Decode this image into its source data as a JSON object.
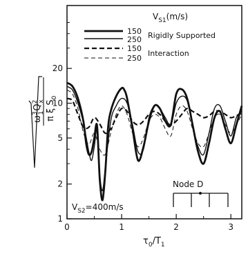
{
  "chart_data": {
    "type": "line",
    "x_axis": {
      "range": [
        0,
        3.2
      ],
      "ticks": [
        0,
        1,
        2,
        3
      ],
      "tick_labels": [
        "0",
        "1",
        "2",
        "3"
      ],
      "minor_step": 0.5,
      "label_main": "τ",
      "label_sub": "0",
      "label_sep": "/T",
      "label_sub2": "1"
    },
    "y_axis": {
      "scale": "log",
      "range": [
        1,
        70
      ],
      "ticks": [
        1,
        2,
        5,
        10,
        20
      ],
      "tick_labels": [
        "1",
        "2",
        "5",
        "10",
        "20"
      ],
      "minor_ticks": [
        3,
        4,
        6,
        7,
        8,
        9,
        30,
        40,
        50
      ],
      "label_sqrt_num": "ω",
      "label_sqrt_num_sup": "3",
      "label_sqrt_num_sub": "1",
      "label_sqrt_num_q": "Q",
      "label_sqrt_num_q_sub": "x",
      "label_sqrt_num_q_sup": "2",
      "label_sqrt_den": "π ξ S",
      "label_sqrt_den_sub": "0"
    },
    "legend": {
      "title_main": "V",
      "title_sub": "S1",
      "title_unit": "(m/s)",
      "groups": [
        {
          "label": "Rigidly Supported"
        },
        {
          "label": "Interaction"
        }
      ],
      "entries": [
        {
          "value": "150",
          "group": 0,
          "style": "solid-thick"
        },
        {
          "value": "250",
          "group": 0,
          "style": "solid-thin"
        },
        {
          "value": "150",
          "group": 1,
          "style": "dashed-thick"
        },
        {
          "value": "250",
          "group": 1,
          "style": "dashed-thin"
        }
      ]
    },
    "annotation": {
      "main": "V",
      "sub": "S2",
      "rest": "=400m/s"
    },
    "inset": {
      "label": "Node D"
    },
    "series": [
      {
        "style": "solid-thick",
        "x": [
          0,
          0.1,
          0.2,
          0.3,
          0.35,
          0.4,
          0.45,
          0.5,
          0.55,
          0.6,
          0.65,
          0.7,
          0.75,
          0.8,
          0.9,
          1.0,
          1.05,
          1.1,
          1.2,
          1.3,
          1.4,
          1.5,
          1.6,
          1.7,
          1.8,
          1.9,
          2.0,
          2.1,
          2.2,
          2.3,
          2.4,
          2.5,
          2.6,
          2.7,
          2.8,
          2.9,
          3.0,
          3.1,
          3.2
        ],
        "y": [
          15,
          14,
          11,
          7,
          4.5,
          3.6,
          3.8,
          5,
          6.4,
          2.2,
          1.45,
          2.5,
          6,
          8.5,
          11.5,
          13.5,
          13,
          11,
          6,
          3.2,
          4.2,
          7,
          9.5,
          9,
          7,
          6.5,
          12,
          13.2,
          11,
          6.5,
          3.8,
          3,
          4.5,
          7.5,
          8.5,
          6,
          4.5,
          6.5,
          9.5
        ]
      },
      {
        "style": "solid-thin",
        "x": [
          0,
          0.1,
          0.2,
          0.3,
          0.4,
          0.45,
          0.5,
          0.55,
          0.6,
          0.65,
          0.7,
          0.8,
          0.9,
          1.0,
          1.1,
          1.2,
          1.3,
          1.4,
          1.5,
          1.6,
          1.7,
          1.8,
          1.9,
          2.0,
          2.1,
          2.2,
          2.3,
          2.4,
          2.5,
          2.6,
          2.7,
          2.8,
          2.9,
          3.0,
          3.1,
          3.2
        ],
        "y": [
          14,
          13,
          10,
          6.8,
          3.8,
          3.2,
          4.2,
          5.8,
          2.4,
          1.75,
          2.7,
          7,
          9.5,
          11,
          10,
          6.5,
          3.8,
          4,
          7.5,
          9.5,
          9,
          7.5,
          6.5,
          10,
          11.5,
          10.5,
          6.5,
          4.2,
          3.6,
          5.5,
          9,
          9.5,
          7,
          5.2,
          7.5,
          8.5
        ]
      },
      {
        "style": "dashed-thick",
        "x": [
          0,
          0.1,
          0.2,
          0.3,
          0.4,
          0.5,
          0.6,
          0.7,
          0.8,
          0.9,
          1.0,
          1.1,
          1.2,
          1.3,
          1.4,
          1.5,
          1.6,
          1.7,
          1.8,
          1.9,
          2.0,
          2.1,
          2.2,
          2.3,
          2.4,
          2.5,
          2.6,
          2.7,
          2.8,
          2.9,
          3.0,
          3.1,
          3.2
        ],
        "y": [
          11,
          10.5,
          8,
          6.2,
          6.2,
          7.5,
          6.6,
          5.5,
          6,
          7.5,
          9,
          8.5,
          7,
          6.5,
          7,
          8,
          8.5,
          8,
          7,
          6.5,
          7,
          8,
          9,
          8.5,
          8,
          7.5,
          7.8,
          8.5,
          8.5,
          8,
          7.5,
          7.8,
          8.2
        ]
      },
      {
        "style": "dashed-thin",
        "x": [
          0,
          0.1,
          0.2,
          0.3,
          0.4,
          0.5,
          0.6,
          0.7,
          0.8,
          0.9,
          1.0,
          1.1,
          1.2,
          1.3,
          1.4,
          1.5,
          1.6,
          1.7,
          1.8,
          1.9,
          2.0,
          2.1,
          2.2,
          2.3,
          2.4,
          2.5,
          2.6,
          2.7,
          2.8,
          2.9,
          3.0,
          3.1,
          3.2
        ],
        "y": [
          13,
          12,
          9,
          5.6,
          4.4,
          5.5,
          4,
          3.6,
          5.5,
          8,
          9.5,
          8,
          5.5,
          4.2,
          5,
          7,
          8,
          7.5,
          6,
          5.2,
          8,
          9.5,
          8.5,
          6,
          4.5,
          4.2,
          5.5,
          7.5,
          8,
          6.5,
          5.5,
          6.5,
          8
        ]
      }
    ]
  }
}
